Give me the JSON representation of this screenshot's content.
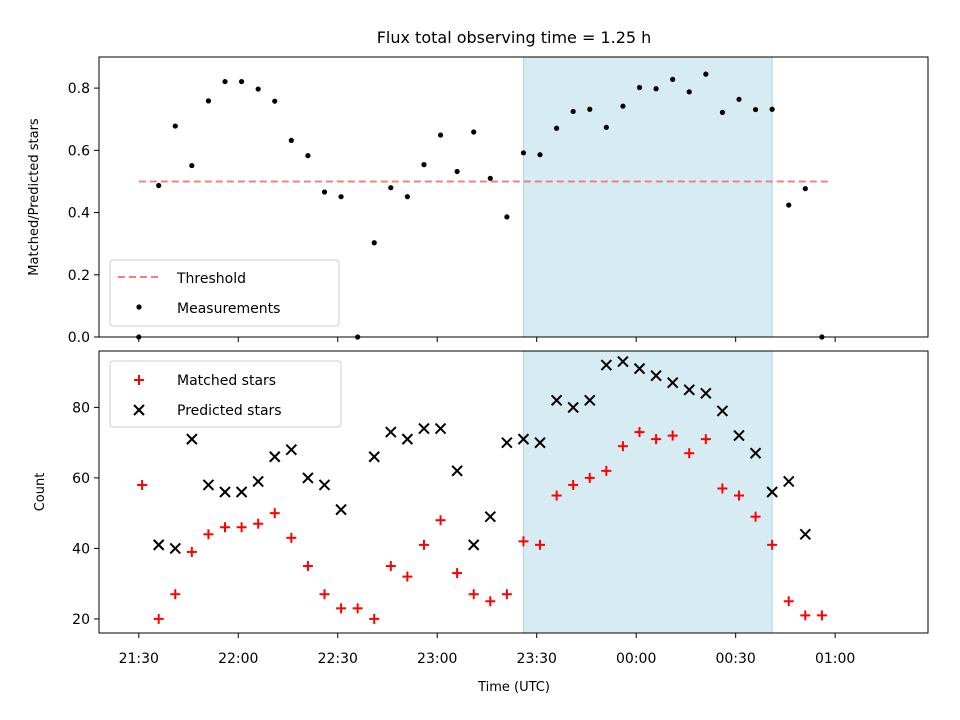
{
  "chart_data": {
    "title": "Flux total observing time = 1.25 h",
    "xlabel": "Time (UTC)",
    "x_ticks": [
      "21:30",
      "22:00",
      "22:30",
      "23:00",
      "23:30",
      "00:00",
      "00:30",
      "01:00"
    ],
    "colors": {
      "threshold": "#f08080",
      "measurements": "#000000",
      "matched": "#ff0000",
      "predicted": "#000000",
      "highlight": "#add8e6"
    },
    "highlight_span": [
      "23:26",
      "00:41"
    ],
    "panels": [
      {
        "type": "scatter",
        "ylabel": "Matched/Predicted stars",
        "ylim": [
          0,
          0.9
        ],
        "y_ticks": [
          0.0,
          0.2,
          0.4,
          0.6,
          0.8
        ],
        "y_tick_labels": [
          "0.0",
          "0.2",
          "0.4",
          "0.6",
          "0.8"
        ],
        "legend_position": "lower-left",
        "legend": [
          {
            "label": "Threshold",
            "marker": "dashed-line"
          },
          {
            "label": "Measurements",
            "marker": "dot"
          }
        ],
        "threshold": {
          "value": 0.5,
          "x_range": [
            "21:30",
            "01:00"
          ]
        },
        "series": [
          {
            "name": "Measurements",
            "points": [
              [
                "21:30",
                0.0
              ],
              [
                "21:36",
                0.487
              ],
              [
                "21:41",
                0.678
              ],
              [
                "21:46",
                0.551
              ],
              [
                "21:51",
                0.759
              ],
              [
                "21:56",
                0.821
              ],
              [
                "22:01",
                0.821
              ],
              [
                "22:06",
                0.797
              ],
              [
                "22:11",
                0.758
              ],
              [
                "22:16",
                0.632
              ],
              [
                "22:21",
                0.583
              ],
              [
                "22:26",
                0.466
              ],
              [
                "22:31",
                0.451
              ],
              [
                "22:36",
                0.0
              ],
              [
                "22:41",
                0.303
              ],
              [
                "22:46",
                0.48
              ],
              [
                "22:51",
                0.451
              ],
              [
                "22:56",
                0.554
              ],
              [
                "23:01",
                0.649
              ],
              [
                "23:06",
                0.532
              ],
              [
                "23:11",
                0.659
              ],
              [
                "23:16",
                0.51
              ],
              [
                "23:21",
                0.386
              ],
              [
                "23:26",
                0.592
              ],
              [
                "23:31",
                0.586
              ],
              [
                "23:36",
                0.671
              ],
              [
                "23:41",
                0.725
              ],
              [
                "23:46",
                0.732
              ],
              [
                "23:51",
                0.674
              ],
              [
                "23:56",
                0.742
              ],
              [
                "00:01",
                0.802
              ],
              [
                "00:06",
                0.798
              ],
              [
                "00:11",
                0.828
              ],
              [
                "00:16",
                0.788
              ],
              [
                "00:21",
                0.845
              ],
              [
                "00:26",
                0.722
              ],
              [
                "00:31",
                0.764
              ],
              [
                "00:36",
                0.731
              ],
              [
                "00:41",
                0.732
              ],
              [
                "00:46",
                0.424
              ],
              [
                "00:51",
                0.477
              ],
              [
                "00:56",
                0.0
              ]
            ]
          }
        ]
      },
      {
        "type": "scatter",
        "ylabel": "Count",
        "ylim": [
          16,
          96
        ],
        "y_ticks": [
          20,
          40,
          60,
          80
        ],
        "y_tick_labels": [
          "20",
          "40",
          "60",
          "80"
        ],
        "legend_position": "upper-left",
        "legend": [
          {
            "label": "Matched stars",
            "marker": "plus"
          },
          {
            "label": "Predicted stars",
            "marker": "x"
          }
        ],
        "series": [
          {
            "name": "Matched stars",
            "points": [
              [
                "21:31",
                58
              ],
              [
                "21:36",
                20
              ],
              [
                "21:41",
                27
              ],
              [
                "21:46",
                39
              ],
              [
                "21:51",
                44
              ],
              [
                "21:56",
                46
              ],
              [
                "22:01",
                46
              ],
              [
                "22:06",
                47
              ],
              [
                "22:11",
                50
              ],
              [
                "22:16",
                43
              ],
              [
                "22:21",
                35
              ],
              [
                "22:26",
                27
              ],
              [
                "22:31",
                23
              ],
              [
                "22:36",
                23
              ],
              [
                "22:41",
                20
              ],
              [
                "22:46",
                35
              ],
              [
                "22:51",
                32
              ],
              [
                "22:56",
                41
              ],
              [
                "23:01",
                48
              ],
              [
                "23:06",
                33
              ],
              [
                "23:11",
                27
              ],
              [
                "23:16",
                25
              ],
              [
                "23:21",
                27
              ],
              [
                "23:26",
                42
              ],
              [
                "23:31",
                41
              ],
              [
                "23:36",
                55
              ],
              [
                "23:41",
                58
              ],
              [
                "23:46",
                60
              ],
              [
                "23:51",
                62
              ],
              [
                "23:56",
                69
              ],
              [
                "00:01",
                73
              ],
              [
                "00:06",
                71
              ],
              [
                "00:11",
                72
              ],
              [
                "00:16",
                67
              ],
              [
                "00:21",
                71
              ],
              [
                "00:26",
                57
              ],
              [
                "00:31",
                55
              ],
              [
                "00:36",
                49
              ],
              [
                "00:41",
                41
              ],
              [
                "00:46",
                25
              ],
              [
                "00:51",
                21
              ],
              [
                "00:56",
                21
              ]
            ]
          },
          {
            "name": "Predicted stars",
            "points": [
              [
                "21:36",
                41
              ],
              [
                "21:41",
                40
              ],
              [
                "21:46",
                71
              ],
              [
                "21:51",
                58
              ],
              [
                "21:56",
                56
              ],
              [
                "22:01",
                56
              ],
              [
                "22:06",
                59
              ],
              [
                "22:11",
                66
              ],
              [
                "22:16",
                68
              ],
              [
                "22:21",
                60
              ],
              [
                "22:26",
                58
              ],
              [
                "22:31",
                51
              ],
              [
                "22:41",
                66
              ],
              [
                "22:46",
                73
              ],
              [
                "22:51",
                71
              ],
              [
                "22:56",
                74
              ],
              [
                "23:01",
                74
              ],
              [
                "23:06",
                62
              ],
              [
                "23:11",
                41
              ],
              [
                "23:16",
                49
              ],
              [
                "23:21",
                70
              ],
              [
                "23:26",
                71
              ],
              [
                "23:31",
                70
              ],
              [
                "23:36",
                82
              ],
              [
                "23:41",
                80
              ],
              [
                "23:46",
                82
              ],
              [
                "23:51",
                92
              ],
              [
                "23:56",
                93
              ],
              [
                "00:01",
                91
              ],
              [
                "00:06",
                89
              ],
              [
                "00:11",
                87
              ],
              [
                "00:16",
                85
              ],
              [
                "00:21",
                84
              ],
              [
                "00:26",
                79
              ],
              [
                "00:31",
                72
              ],
              [
                "00:36",
                67
              ],
              [
                "00:41",
                56
              ],
              [
                "00:46",
                59
              ],
              [
                "00:51",
                44
              ]
            ]
          }
        ]
      }
    ]
  }
}
